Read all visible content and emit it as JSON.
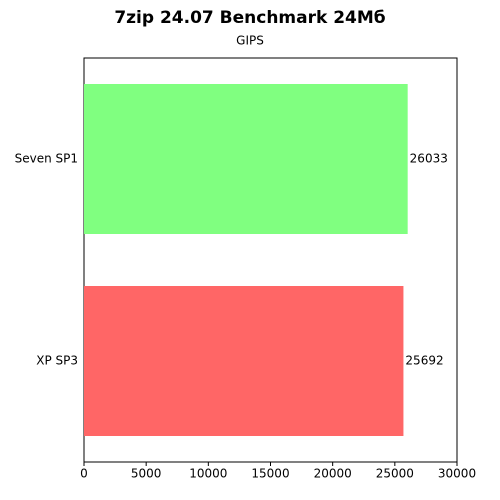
{
  "chart_data": {
    "type": "bar",
    "orientation": "horizontal",
    "title": "7zip 24.07 Benchmark 24Мб",
    "subtitle": "GIPS",
    "categories": [
      "Seven SP1",
      "XP SP3"
    ],
    "values": [
      26033,
      25692
    ],
    "colors": [
      "#80ff80",
      "#ff6666"
    ],
    "xlim": [
      0,
      30000
    ],
    "xticks": [
      0,
      5000,
      10000,
      15000,
      20000,
      25000,
      30000
    ],
    "grid": false
  }
}
